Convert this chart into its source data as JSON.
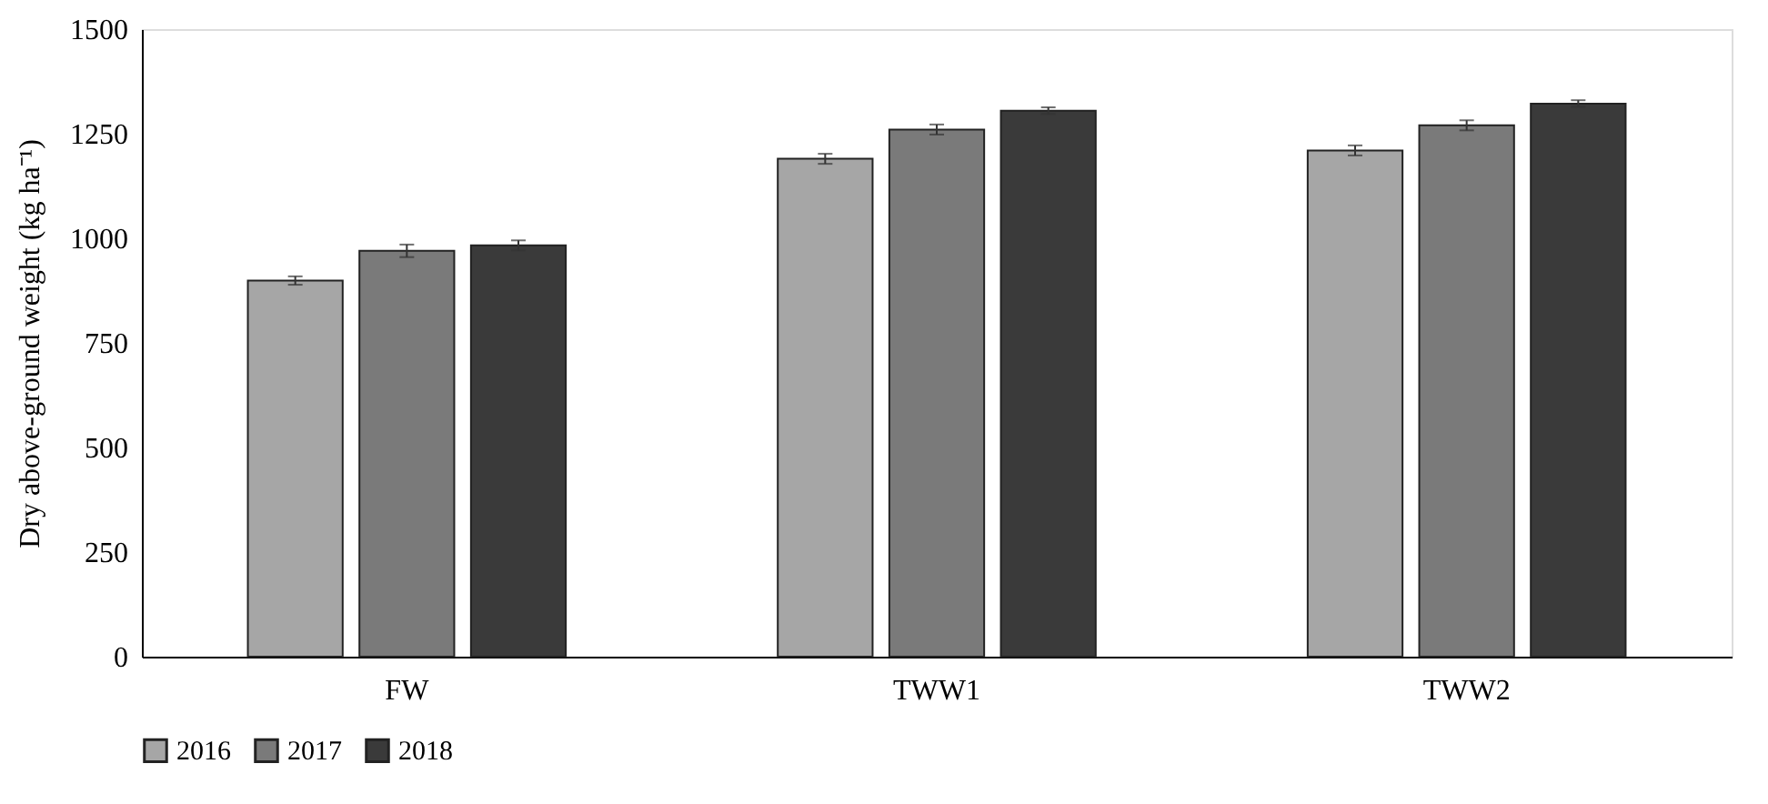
{
  "chart_data": {
    "type": "bar",
    "ylabel": "Dry above-ground weight (kg ha⁻¹)",
    "categories": [
      "FW",
      "TWW1",
      "TWW2"
    ],
    "series": [
      {
        "name": "2016",
        "color": "#a6a6a6",
        "values": [
          899,
          1190,
          1210
        ],
        "errors": [
          10,
          12,
          12
        ]
      },
      {
        "name": "2017",
        "color": "#7a7a7a",
        "values": [
          970,
          1260,
          1270
        ],
        "errors": [
          15,
          12,
          12
        ]
      },
      {
        "name": "2018",
        "color": "#3a3a3a",
        "values": [
          983,
          1305,
          1322
        ],
        "errors": [
          12,
          8,
          8
        ]
      }
    ],
    "ylim": [
      0,
      1500
    ],
    "yticks": [
      0,
      250,
      500,
      750,
      1000,
      1250,
      1500
    ],
    "grid": false,
    "legend": "bottom"
  }
}
